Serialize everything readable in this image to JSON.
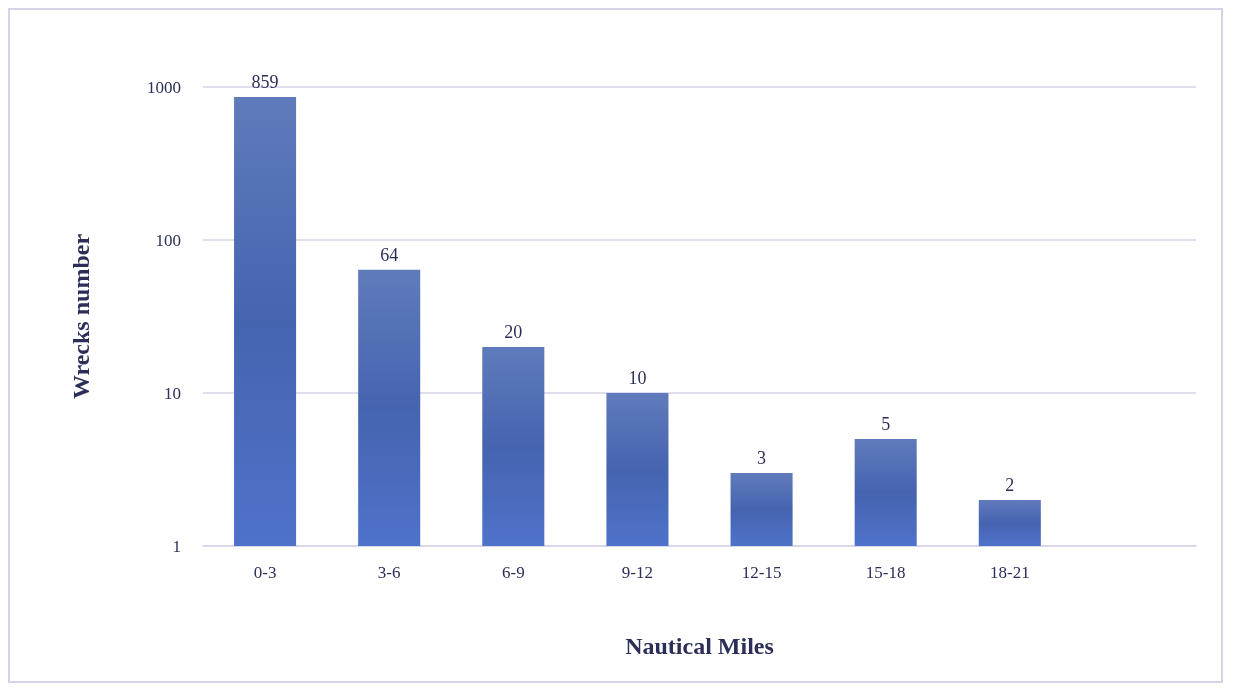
{
  "chart_data": {
    "type": "bar",
    "xlabel": "Nautical Miles",
    "ylabel": "Wrecks number",
    "categories": [
      "0-3",
      "3-6",
      "6-9",
      "9-12",
      "12-15",
      "15-18",
      "18-21",
      null
    ],
    "values": [
      859,
      64,
      20,
      10,
      3,
      5,
      2,
      null
    ],
    "color": "#4564b0",
    "log": true,
    "ylim": [
      1,
      1000
    ],
    "yticks": [
      1,
      10,
      100,
      1000
    ],
    "grid": "y",
    "data_labels": true
  }
}
